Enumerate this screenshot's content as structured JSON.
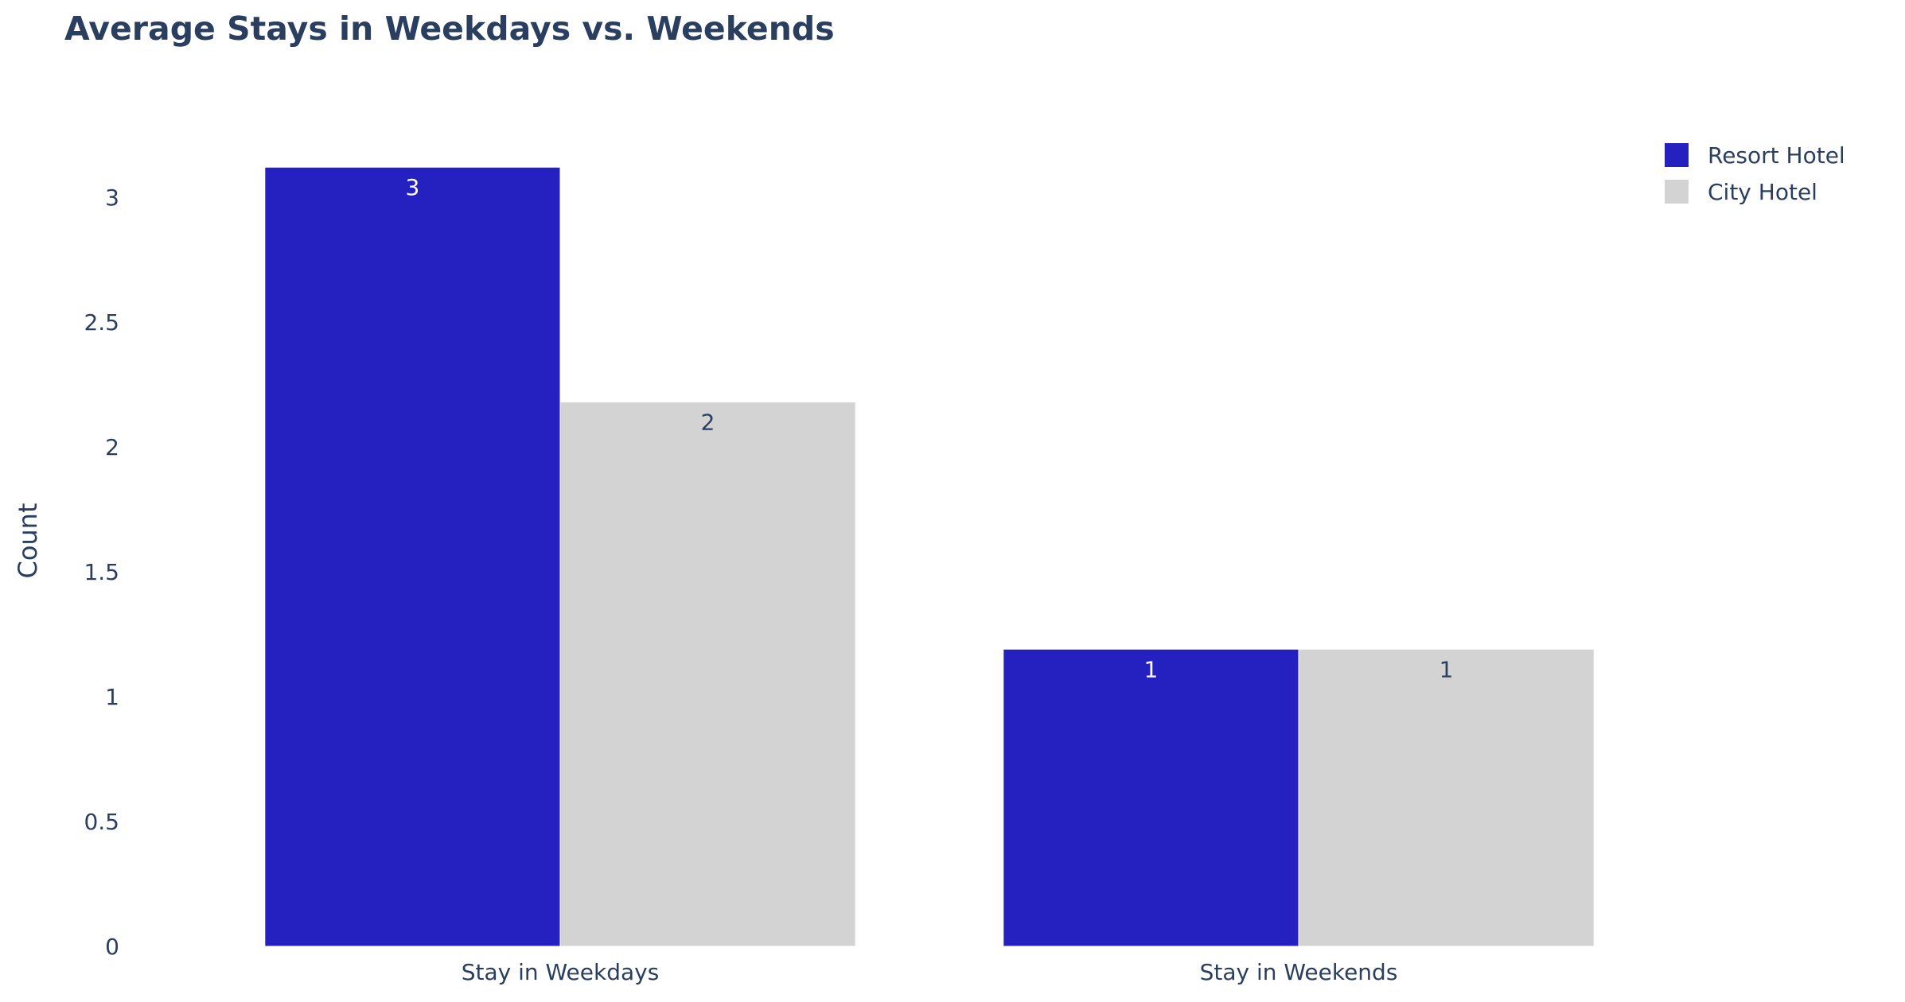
{
  "chart_data": {
    "type": "bar",
    "title": "Average Stays in Weekdays vs. Weekends",
    "xlabel": "",
    "ylabel": "Count",
    "categories": [
      "Stay in Weekdays",
      "Stay in Weekends"
    ],
    "series": [
      {
        "name": "Resort Hotel",
        "values": [
          3.12,
          1.19
        ],
        "labels": [
          "3",
          "1"
        ],
        "color": "#2421c0",
        "label_color": "#ffffff"
      },
      {
        "name": "City Hotel",
        "values": [
          2.18,
          1.19
        ],
        "labels": [
          "2",
          "1"
        ],
        "color": "#d3d3d3",
        "label_color": "#2a3f5f"
      }
    ],
    "ylim": [
      0,
      3.28
    ],
    "yticks": [
      0,
      0.5,
      1,
      1.5,
      2,
      2.5,
      3
    ],
    "ytick_labels": [
      "0",
      "0.5",
      "1",
      "1.5",
      "2",
      "2.5",
      "3"
    ],
    "barmode": "group",
    "grid": false,
    "legend_position": "top-right"
  }
}
